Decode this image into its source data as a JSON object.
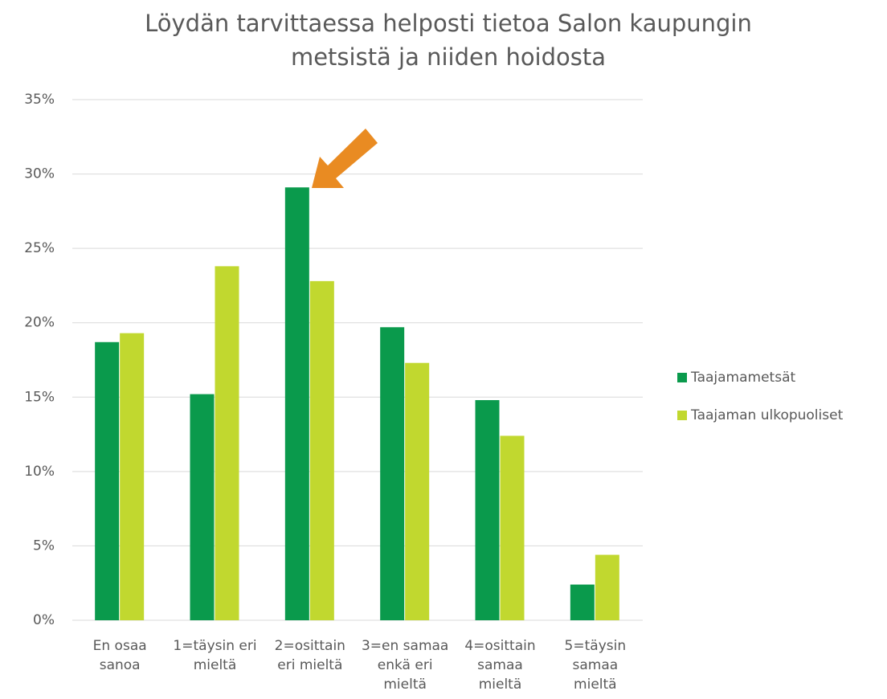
{
  "chart_data": {
    "type": "bar",
    "title": "Löydän tarvittaessa helposti tietoa Salon kaupungin\nmetsistä ja niiden hoidosta",
    "categories": [
      "En osaa\nsanoa",
      "1=täysin eri\nmieltä",
      "2=osittain\neri mieltä",
      "3=en samaa\nenkä eri\nmieltä",
      "4=osittain\nsamaa\nmieltä",
      "5=täysin\nsamaa\nmieltä"
    ],
    "series": [
      {
        "name": "Taajamametsät",
        "color": "#0a9a4c",
        "values": [
          18.7,
          15.2,
          29.1,
          19.7,
          14.8,
          2.4
        ]
      },
      {
        "name": "Taajaman ulkopuoliset",
        "color": "#c1d82f",
        "values": [
          19.3,
          23.8,
          22.8,
          17.3,
          12.4,
          4.4
        ]
      }
    ],
    "ylim": [
      0,
      35
    ],
    "yticks": [
      {
        "value": 0,
        "label": "0%"
      },
      {
        "value": 5,
        "label": "5%"
      },
      {
        "value": 10,
        "label": "10%"
      },
      {
        "value": 15,
        "label": "15%"
      },
      {
        "value": 20,
        "label": "20%"
      },
      {
        "value": 25,
        "label": "25%"
      },
      {
        "value": 30,
        "label": "30%"
      },
      {
        "value": 35,
        "label": "35%"
      }
    ],
    "grid": true,
    "legend": "right"
  }
}
